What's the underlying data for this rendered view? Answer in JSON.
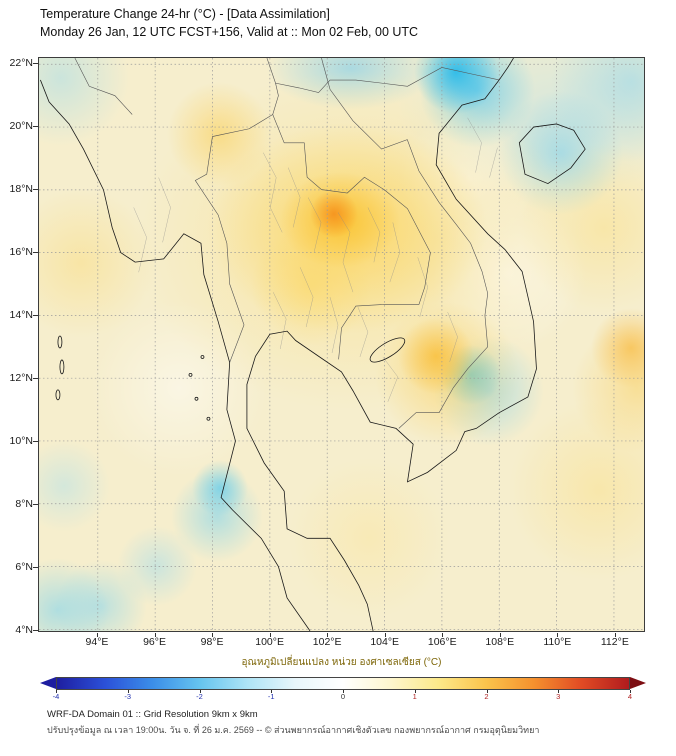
{
  "header": {
    "title": "Temperature Change 24-hr (°C) - [Data Assimilation]",
    "subtitle": "Monday 26 Jan, 12 UTC FCST+156, Valid at :: Mon 02 Feb, 00 UTC"
  },
  "map": {
    "lat_labels": [
      "22°N",
      "20°N",
      "18°N",
      "16°N",
      "14°N",
      "12°N",
      "10°N",
      "8°N",
      "6°N",
      "4°N"
    ],
    "lon_labels": [
      "94°E",
      "96°E",
      "98°E",
      "100°E",
      "102°E",
      "104°E",
      "106°E",
      "108°E",
      "110°E",
      "112°E"
    ]
  },
  "colorbar": {
    "label": "อุณหภูมิเปลี่ยนแปลง หน่วย องศาเซลเซียส (°C)",
    "tick_labels": [
      "-4",
      "-3",
      "-2",
      "-1",
      "0",
      "1",
      "2",
      "3",
      "4"
    ],
    "min_color": "#1e1ea0",
    "max_color": "#7d0d12",
    "negative_tick_color": "#2433b0",
    "positive_tick_color": "#b02424",
    "gradient": [
      "#1e1ea0",
      "#2b50d8",
      "#3b8ee8",
      "#66c4ee",
      "#aee4f6",
      "#e8f6fb",
      "#ffffff",
      "#fdf6ce",
      "#fce98a",
      "#fbc44c",
      "#f5912e",
      "#e14b24",
      "#b01b1e"
    ]
  },
  "footer": {
    "line1": "WRF-DA Domain 01 :: Grid Resolution 9km x 9km",
    "line2": "ปรับปรุงข้อมูล ณ เวลา 19:00น. วัน จ. ที่ 26 ม.ค. 2569 -- © ส่วนพยากรณ์อากาศเชิงตัวเลข กองพยากรณ์อากาศ กรมอุตุนิยมวิทยา"
  }
}
